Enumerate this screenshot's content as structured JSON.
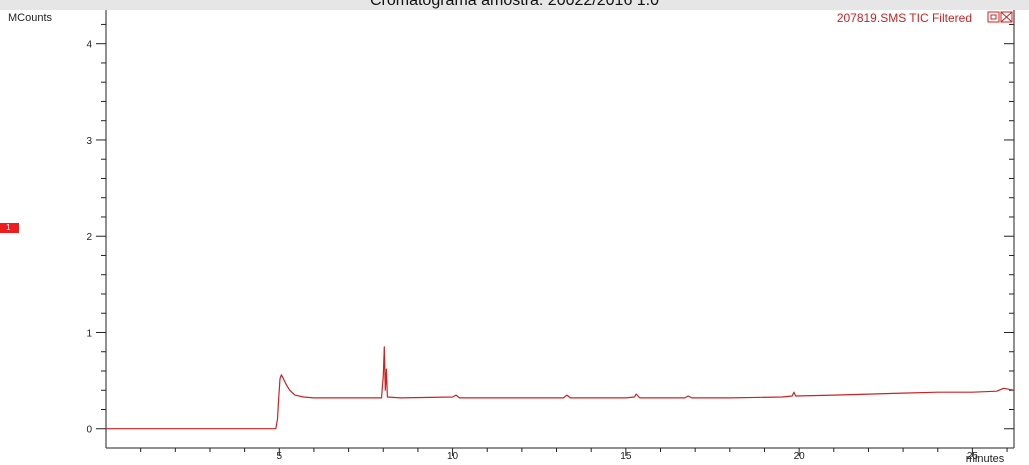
{
  "window": {
    "title": "Cromatograma amostra: 20022/2016 1.0"
  },
  "trace_label": "207819.SMS TIC Filtered",
  "marker_label": "1",
  "colors": {
    "trace": "#cc2222",
    "axis": "#222222",
    "marker": "#ee1c1c"
  },
  "icons": [
    "restore-icon",
    "close-icon"
  ],
  "chart_data": {
    "type": "line",
    "title": "Cromatograma amostra: 20022/2016 1.0",
    "xlabel": "minutes",
    "ylabel": "MCounts",
    "xlim": [
      0,
      26.2
    ],
    "ylim": [
      -0.2,
      4.35
    ],
    "x_ticks": [
      5,
      10,
      15,
      20,
      25
    ],
    "y_ticks": [
      0,
      1,
      2,
      3,
      4
    ],
    "series": [
      {
        "name": "207819.SMS TIC Filtered",
        "points": [
          [
            0,
            0.0
          ],
          [
            4.9,
            0.0
          ],
          [
            4.95,
            0.1
          ],
          [
            4.98,
            0.3
          ],
          [
            5.02,
            0.52
          ],
          [
            5.06,
            0.56
          ],
          [
            5.12,
            0.52
          ],
          [
            5.2,
            0.46
          ],
          [
            5.3,
            0.4
          ],
          [
            5.45,
            0.35
          ],
          [
            5.7,
            0.33
          ],
          [
            6.0,
            0.32
          ],
          [
            7.0,
            0.32
          ],
          [
            7.95,
            0.32
          ],
          [
            8.0,
            0.55
          ],
          [
            8.03,
            0.85
          ],
          [
            8.06,
            0.4
          ],
          [
            8.09,
            0.62
          ],
          [
            8.12,
            0.33
          ],
          [
            8.5,
            0.32
          ],
          [
            10.0,
            0.33
          ],
          [
            10.1,
            0.35
          ],
          [
            10.2,
            0.32
          ],
          [
            12.0,
            0.32
          ],
          [
            13.2,
            0.32
          ],
          [
            13.3,
            0.35
          ],
          [
            13.4,
            0.32
          ],
          [
            15.0,
            0.32
          ],
          [
            15.25,
            0.33
          ],
          [
            15.3,
            0.36
          ],
          [
            15.4,
            0.32
          ],
          [
            16.7,
            0.32
          ],
          [
            16.8,
            0.34
          ],
          [
            16.9,
            0.32
          ],
          [
            18.0,
            0.32
          ],
          [
            19.5,
            0.33
          ],
          [
            19.8,
            0.34
          ],
          [
            19.85,
            0.38
          ],
          [
            19.9,
            0.34
          ],
          [
            21.0,
            0.35
          ],
          [
            22.0,
            0.36
          ],
          [
            23.0,
            0.37
          ],
          [
            24.0,
            0.38
          ],
          [
            25.0,
            0.38
          ],
          [
            25.7,
            0.39
          ],
          [
            25.9,
            0.42
          ],
          [
            26.2,
            0.4
          ]
        ]
      }
    ]
  }
}
